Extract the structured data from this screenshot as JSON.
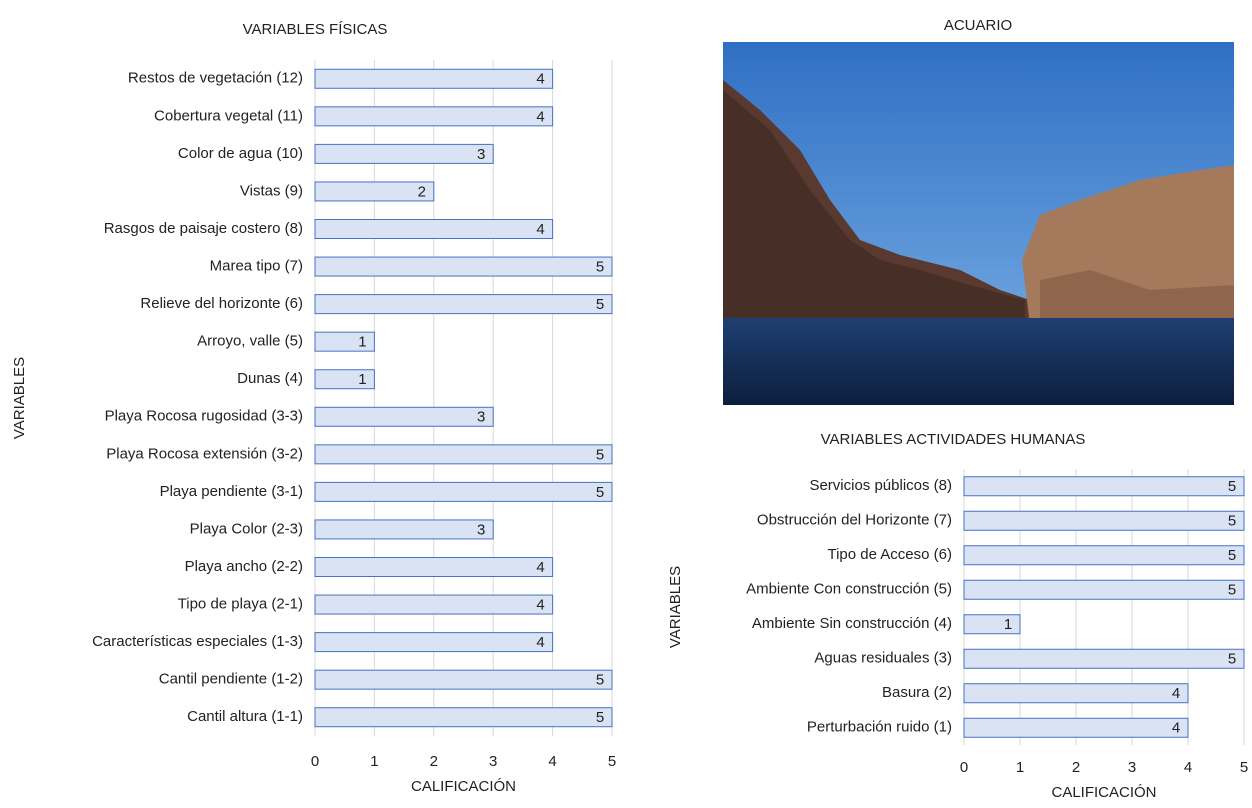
{
  "chart_data": [
    {
      "type": "bar",
      "orientation": "horizontal",
      "title": "VARIABLES FÍSICAS",
      "xlabel": "CALIFICACIÓN",
      "ylabel": "VARIABLES",
      "categories": [
        "Restos de vegetación (12)",
        "Cobertura vegetal (11)",
        "Color de agua (10)",
        "Vistas (9)",
        "Rasgos de paisaje costero (8)",
        "Marea tipo (7)",
        "Relieve del horizonte (6)",
        "Arroyo, valle (5)",
        "Dunas (4)",
        "Playa Rocosa rugosidad (3-3)",
        "Playa Rocosa extensión (3-2)",
        "Playa pendiente (3-1)",
        "Playa Color (2-3)",
        "Playa ancho (2-2)",
        "Tipo de playa (2-1)",
        "Características especiales (1-3)",
        "Cantil pendiente (1-2)",
        "Cantil altura (1-1)"
      ],
      "values": [
        4,
        4,
        3,
        2,
        4,
        5,
        5,
        1,
        1,
        3,
        5,
        5,
        3,
        4,
        4,
        4,
        5,
        5
      ],
      "color": "#dae3f3",
      "edge_color": "#4472c4",
      "xlim": [
        0,
        5
      ],
      "xticks": [
        0,
        1,
        2,
        3,
        4,
        5
      ],
      "grid": true
    },
    {
      "type": "bar",
      "orientation": "horizontal",
      "title": "VARIABLES ACTIVIDADES HUMANAS",
      "xlabel": "CALIFICACIÓN",
      "ylabel": "VARIABLES",
      "categories": [
        "Servicios públicos (8)",
        "Obstrucción del Horizonte (7)",
        "Tipo de Acceso (6)",
        "Ambiente Con construcción (5)",
        "Ambiente Sin construcción (4)",
        "Aguas residuales (3)",
        "Basura (2)",
        "Perturbación ruido (1)"
      ],
      "values": [
        5,
        5,
        5,
        5,
        1,
        5,
        4,
        4
      ],
      "color": "#dae3f3",
      "edge_color": "#4472c4",
      "xlim": [
        0,
        5
      ],
      "xticks": [
        0,
        1,
        2,
        3,
        4,
        5
      ],
      "grid": true
    }
  ],
  "photo": {
    "title": "ACUARIO"
  }
}
